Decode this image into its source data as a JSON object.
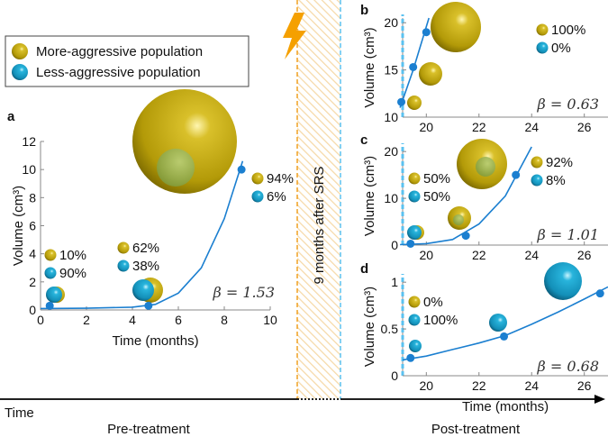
{
  "legend": {
    "more_aggressive": "More-aggressive population",
    "less_aggressive": "Less-aggressive population"
  },
  "gap_label": "9 months after SRS",
  "timeline": {
    "time": "Time",
    "pre": "Pre-treatment",
    "post": "Post-treatment"
  },
  "colors": {
    "gold": "#c2a80c",
    "cyan": "#1a9fc9",
    "line": "#1b7fd0",
    "orange": "#f0a020",
    "dash_blue": "#5bc2f0"
  },
  "chart_data": [
    {
      "panel": "a",
      "type": "line",
      "xlabel": "Time (months)",
      "ylabel": "Volume (cm³)",
      "xlim": [
        0,
        10
      ],
      "ylim": [
        0,
        12
      ],
      "xticks": [
        "0",
        "2",
        "4",
        "6",
        "8",
        "10"
      ],
      "yticks": [
        "0",
        "2",
        "4",
        "6",
        "8",
        "10",
        "12"
      ],
      "points": [
        [
          0.4,
          0.3
        ],
        [
          4.7,
          0.3
        ],
        [
          8.75,
          10
        ]
      ],
      "fit": [
        [
          0,
          0.1
        ],
        [
          2,
          0.12
        ],
        [
          4,
          0.2
        ],
        [
          5,
          0.4
        ],
        [
          6,
          1.2
        ],
        [
          7,
          3
        ],
        [
          8,
          6.5
        ],
        [
          8.8,
          10.6
        ]
      ],
      "beta": "β = 1.53",
      "compositions": [
        {
          "more": "10%",
          "less": "90%"
        },
        {
          "more": "62%",
          "less": "38%"
        },
        {
          "more": "94%",
          "less": "6%"
        }
      ]
    },
    {
      "panel": "b",
      "type": "line",
      "xlabel": "",
      "ylabel": "Volume (cm³)",
      "xlim": [
        19.1,
        26.9
      ],
      "ylim": [
        10,
        20.5
      ],
      "xticks": [
        "20",
        "22",
        "24",
        "26"
      ],
      "yticks": [
        "10",
        "15",
        "20"
      ],
      "points": [
        [
          19.05,
          11.6
        ],
        [
          19.5,
          15.3
        ],
        [
          20,
          19
        ]
      ],
      "fit": [
        [
          19,
          11
        ],
        [
          19.5,
          15
        ],
        [
          20.1,
          20.5
        ]
      ],
      "beta": "β = 0.63",
      "compositions": [
        {
          "more": "100%",
          "less": "0%"
        }
      ]
    },
    {
      "panel": "c",
      "type": "line",
      "xlabel": "",
      "ylabel": "Volume (cm³)",
      "xlim": [
        19.1,
        26.9
      ],
      "ylim": [
        0,
        21
      ],
      "xticks": [
        "20",
        "22",
        "24",
        "26"
      ],
      "yticks": [
        "0",
        "10",
        "20"
      ],
      "points": [
        [
          19.4,
          0.3
        ],
        [
          21.5,
          2
        ],
        [
          23.4,
          15
        ]
      ],
      "fit": [
        [
          19,
          0.1
        ],
        [
          20,
          0.3
        ],
        [
          21,
          1.2
        ],
        [
          22,
          4.5
        ],
        [
          23,
          10.5
        ],
        [
          24,
          21
        ]
      ],
      "beta": "β = 1.01",
      "compositions": [
        {
          "more": "50%",
          "less": "50%"
        },
        {
          "more": "92%",
          "less": "8%"
        }
      ]
    },
    {
      "panel": "d",
      "type": "line",
      "xlabel": "Time (months)",
      "ylabel": "Volume (cm³)",
      "xlim": [
        19.1,
        26.9
      ],
      "ylim": [
        0,
        1.05
      ],
      "xticks": [
        "20",
        "22",
        "24",
        "26"
      ],
      "yticks": [
        "0",
        "0.5",
        "1"
      ],
      "points": [
        [
          19.4,
          0.19
        ],
        [
          22.95,
          0.42
        ],
        [
          26.6,
          0.88
        ]
      ],
      "fit": [
        [
          19.1,
          0.17
        ],
        [
          20,
          0.21
        ],
        [
          21,
          0.28
        ],
        [
          22,
          0.35
        ],
        [
          23,
          0.43
        ],
        [
          24,
          0.55
        ],
        [
          25,
          0.68
        ],
        [
          26,
          0.82
        ],
        [
          26.9,
          0.95
        ]
      ],
      "beta": "β = 0.68",
      "compositions": [
        {
          "more": "0%",
          "less": "100%"
        }
      ]
    }
  ]
}
